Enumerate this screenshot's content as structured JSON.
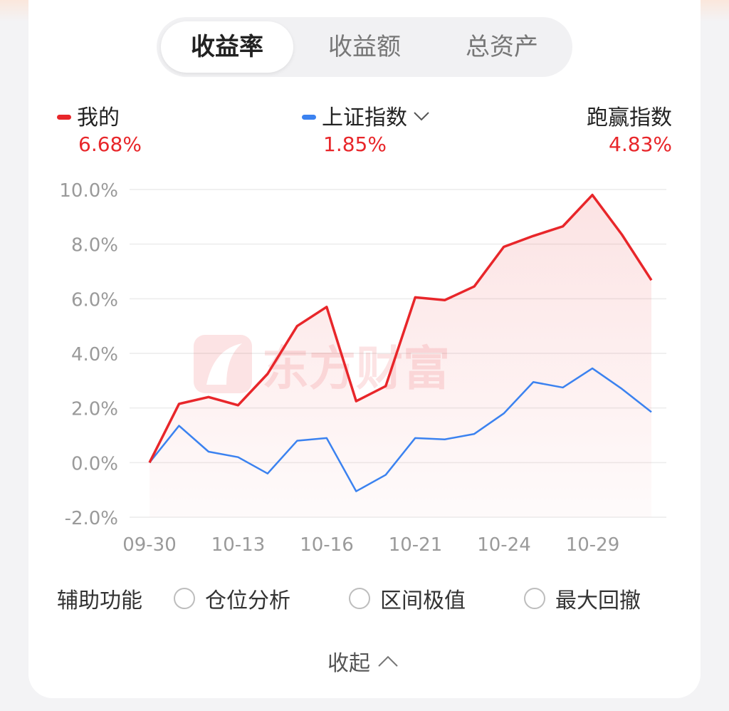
{
  "tabs": [
    {
      "label": "收益率",
      "active": true
    },
    {
      "label": "收益额",
      "active": false
    },
    {
      "label": "总资产",
      "active": false
    }
  ],
  "legend": {
    "mine": {
      "label": "我的",
      "value": "6.68%",
      "color": "#e8262a"
    },
    "index": {
      "label": "上证指数",
      "value": "1.85%",
      "color": "#3b82f0"
    },
    "beat": {
      "label": "跑赢指数",
      "value": "4.83%"
    }
  },
  "watermark": "东方财富",
  "chart_data": {
    "type": "line",
    "x_tick_labels": [
      "09-30",
      "10-13",
      "10-16",
      "10-21",
      "10-24",
      "10-29"
    ],
    "y_tick_labels": [
      "10.0%",
      "8.0%",
      "6.0%",
      "4.0%",
      "2.0%",
      "0.0%",
      "-2.0%"
    ],
    "ylim": [
      -2,
      10
    ],
    "grid": true,
    "series": [
      {
        "name": "我的",
        "color": "#e8262a",
        "values": [
          0.0,
          2.15,
          2.4,
          2.1,
          3.25,
          5.0,
          5.7,
          2.25,
          2.8,
          6.05,
          5.95,
          6.45,
          7.9,
          8.3,
          8.65,
          9.8,
          8.35,
          6.68
        ]
      },
      {
        "name": "上证指数",
        "color": "#3b82f0",
        "values": [
          0.0,
          1.35,
          0.4,
          0.2,
          -0.4,
          0.8,
          0.9,
          -1.05,
          -0.45,
          0.9,
          0.85,
          1.05,
          1.8,
          2.95,
          2.75,
          3.45,
          2.7,
          1.85
        ]
      }
    ]
  },
  "aux": {
    "label": "辅助功能",
    "options": [
      "仓位分析",
      "区间极值",
      "最大回撤"
    ]
  },
  "collapse_label": "收起"
}
